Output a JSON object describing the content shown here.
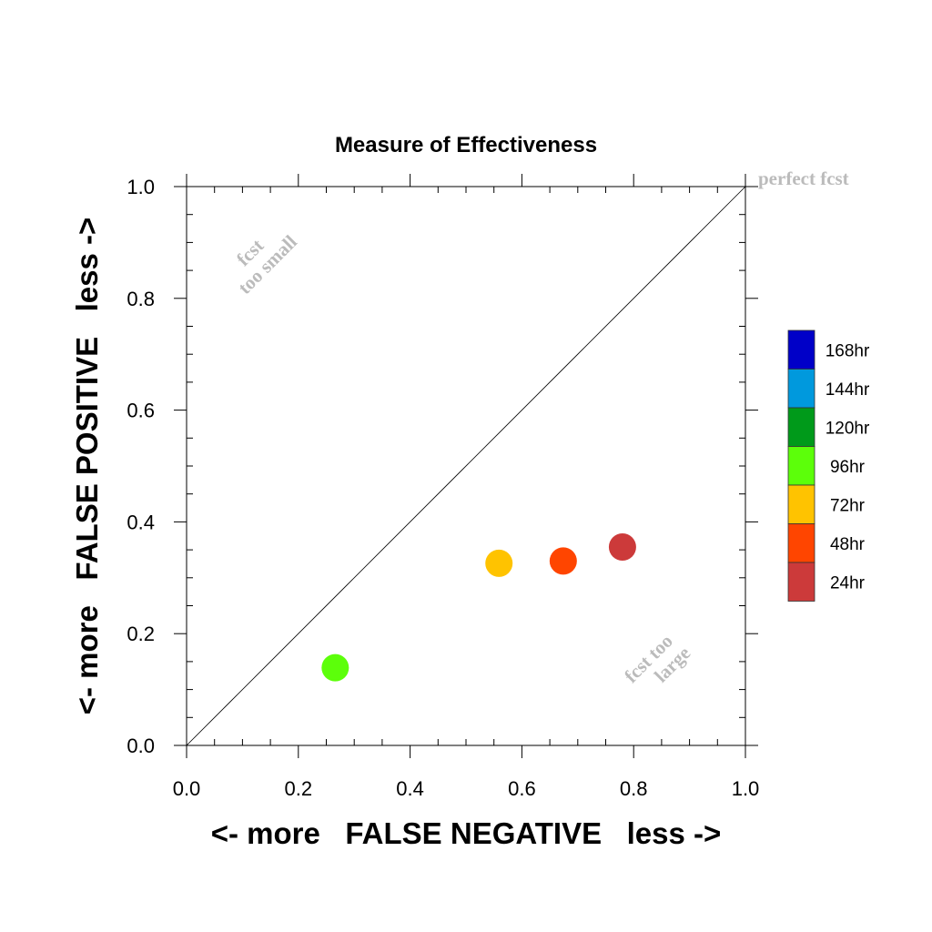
{
  "chart_data": {
    "type": "scatter",
    "title": "Measure of Effectiveness",
    "xlabel": "<- more   FALSE NEGATIVE   less ->",
    "ylabel": "<- more   FALSE POSITIVE   less ->",
    "xlim": [
      0.0,
      1.0
    ],
    "ylim": [
      0.0,
      1.0
    ],
    "x_ticks": [
      "0.0",
      "0.2",
      "0.4",
      "0.6",
      "0.8",
      "1.0"
    ],
    "y_ticks": [
      "0.0",
      "0.2",
      "0.4",
      "0.6",
      "0.8",
      "1.0"
    ],
    "diagonal": true,
    "grid": false,
    "legend_position": "right",
    "annotations": {
      "perfect": "perfect fcst",
      "too_small_line1": "fcst",
      "too_small_line2": "too small",
      "too_large_line1": "fcst too",
      "too_large_line2": "large"
    },
    "legend": [
      {
        "label": "168hr",
        "color": "#0000c8"
      },
      {
        "label": "144hr",
        "color": "#0099dd"
      },
      {
        "label": "120hr",
        "color": "#009a1a"
      },
      {
        "label": "96hr",
        "color": "#5cff0a"
      },
      {
        "label": "72hr",
        "color": "#ffc300"
      },
      {
        "label": "48hr",
        "color": "#ff4500"
      },
      {
        "label": "24hr",
        "color": "#cc3a3a"
      }
    ],
    "series": [
      {
        "name": "96hr",
        "color": "#5cff0a",
        "x": 0.266,
        "y": 0.139
      },
      {
        "name": "72hr",
        "color": "#ffc300",
        "x": 0.559,
        "y": 0.326
      },
      {
        "name": "48hr",
        "color": "#ff4500",
        "x": 0.674,
        "y": 0.33
      },
      {
        "name": "24hr",
        "color": "#cc3a3a",
        "x": 0.78,
        "y": 0.355
      }
    ]
  }
}
